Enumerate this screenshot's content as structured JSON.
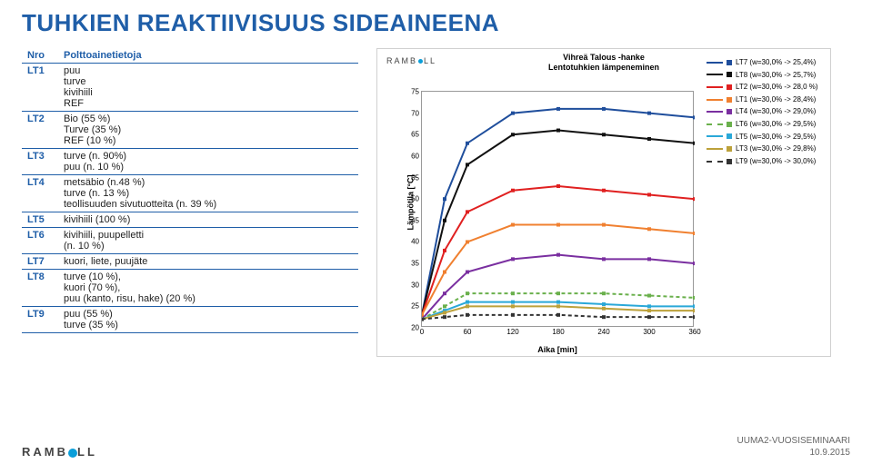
{
  "title": "TUHKIEN REAKTIIVISUUS SIDEAINEENA",
  "table": {
    "headers": {
      "nro": "Nro",
      "info": "Polttoainetietoja"
    },
    "rows": [
      {
        "nro": "LT1",
        "info": "puu\nturve\nkivihiili\nREF"
      },
      {
        "nro": "LT2",
        "info": "Bio (55 %)\nTurve (35 %)\nREF (10 %)"
      },
      {
        "nro": "LT3",
        "info": "turve (n. 90%)\npuu (n. 10 %)"
      },
      {
        "nro": "LT4",
        "info": "metsäbio (n.48 %)\nturve (n. 13 %)\nteollisuuden sivutuotteita (n. 39 %)"
      },
      {
        "nro": "LT5",
        "info": "kivihiili (100 %)"
      },
      {
        "nro": "LT6",
        "info": "kivihiili, puupelletti\n(n. 10 %)"
      },
      {
        "nro": "LT7",
        "info": "kuori, liete, puujäte"
      },
      {
        "nro": "LT8",
        "info": "turve (10 %),\nkuori (70 %),\npuu (kanto, risu, hake) (20 %)"
      },
      {
        "nro": "LT9",
        "info": "puu (55 %)\nturve (35 %)"
      }
    ]
  },
  "chart": {
    "brand": "RAMBOLL",
    "title_line1": "Vihreä Talous -hanke",
    "title_line2": "Lentotuhkien lämpeneminen",
    "ylabel": "Lämpötila [°C]",
    "xlabel": "Aika [min]",
    "ylim": [
      20,
      75
    ],
    "ytick_step": 5,
    "xlim": [
      0,
      360
    ],
    "xtick_step": 60,
    "background_color": "#ffffff",
    "axis_color": "#999999",
    "series": [
      {
        "name": "LT7",
        "label": "LT7  (w=30,0% -> 25,4%)",
        "color": "#1f4e9c",
        "style": "solid",
        "points": [
          [
            0,
            23
          ],
          [
            30,
            50
          ],
          [
            60,
            63
          ],
          [
            120,
            70
          ],
          [
            180,
            71
          ],
          [
            240,
            71
          ],
          [
            300,
            70
          ],
          [
            360,
            69
          ]
        ]
      },
      {
        "name": "LT8",
        "label": "LT8  (w=30,0% -> 25,7%)",
        "color": "#111111",
        "style": "solid",
        "points": [
          [
            0,
            23
          ],
          [
            30,
            45
          ],
          [
            60,
            58
          ],
          [
            120,
            65
          ],
          [
            180,
            66
          ],
          [
            240,
            65
          ],
          [
            300,
            64
          ],
          [
            360,
            63
          ]
        ]
      },
      {
        "name": "LT2",
        "label": "LT2  (w=30,0% -> 28,0 %)",
        "color": "#e02020",
        "style": "solid",
        "points": [
          [
            0,
            23
          ],
          [
            30,
            38
          ],
          [
            60,
            47
          ],
          [
            120,
            52
          ],
          [
            180,
            53
          ],
          [
            240,
            52
          ],
          [
            300,
            51
          ],
          [
            360,
            50
          ]
        ]
      },
      {
        "name": "LT1",
        "label": "LT1  (w=30,0% -> 28,4%)",
        "color": "#f08030",
        "style": "solid",
        "points": [
          [
            0,
            23
          ],
          [
            30,
            33
          ],
          [
            60,
            40
          ],
          [
            120,
            44
          ],
          [
            180,
            44
          ],
          [
            240,
            44
          ],
          [
            300,
            43
          ],
          [
            360,
            42
          ]
        ]
      },
      {
        "name": "LT4",
        "label": "LT4  (w=30,0% -> 29,0%)",
        "color": "#7a2fa0",
        "style": "solid",
        "points": [
          [
            0,
            22
          ],
          [
            30,
            28
          ],
          [
            60,
            33
          ],
          [
            120,
            36
          ],
          [
            180,
            37
          ],
          [
            240,
            36
          ],
          [
            300,
            36
          ],
          [
            360,
            35
          ]
        ]
      },
      {
        "name": "LT6",
        "label": "LT6  (w=30,0% -> 29,5%)",
        "color": "#6ab04c",
        "style": "dash",
        "points": [
          [
            0,
            22
          ],
          [
            30,
            25
          ],
          [
            60,
            28
          ],
          [
            120,
            28
          ],
          [
            180,
            28
          ],
          [
            240,
            28
          ],
          [
            300,
            27.5
          ],
          [
            360,
            27
          ]
        ]
      },
      {
        "name": "LT5",
        "label": "LT5  (w=30,0% -> 29,5%)",
        "color": "#2aa8d8",
        "style": "solid",
        "points": [
          [
            0,
            22
          ],
          [
            30,
            24
          ],
          [
            60,
            26
          ],
          [
            120,
            26
          ],
          [
            180,
            26
          ],
          [
            240,
            25.5
          ],
          [
            300,
            25
          ],
          [
            360,
            25
          ]
        ]
      },
      {
        "name": "LT3",
        "label": "LT3  (w=30,0% -> 29,8%)",
        "color": "#bca13a",
        "style": "solid",
        "points": [
          [
            0,
            22
          ],
          [
            30,
            23.5
          ],
          [
            60,
            25
          ],
          [
            120,
            25
          ],
          [
            180,
            25
          ],
          [
            240,
            24.5
          ],
          [
            300,
            24
          ],
          [
            360,
            24
          ]
        ]
      },
      {
        "name": "LT9",
        "label": "LT9  (w=30,0% -> 30,0%)",
        "color": "#333333",
        "style": "dash",
        "points": [
          [
            0,
            22
          ],
          [
            30,
            22.5
          ],
          [
            60,
            23
          ],
          [
            120,
            23
          ],
          [
            180,
            23
          ],
          [
            240,
            22.5
          ],
          [
            300,
            22.5
          ],
          [
            360,
            22.5
          ]
        ]
      }
    ]
  },
  "footer": {
    "brand": "RAMBOLL",
    "event": "UUMA2-VUOSISEMINAARI",
    "date": "10.9.2015"
  }
}
